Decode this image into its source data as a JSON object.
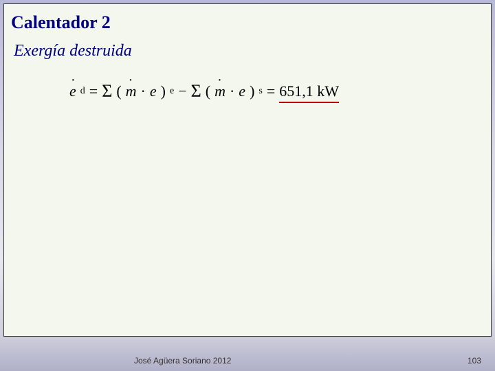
{
  "slide": {
    "title": "Calentador 2",
    "subtitle": "Exergía destruida",
    "equation": {
      "lhs_var": "e",
      "lhs_sub": "d",
      "eq1": "=",
      "sigma1": "Σ",
      "open1": "(",
      "m1": "m",
      "dot1": "·",
      "e1": "e",
      "close1": ")",
      "sub_e": "e",
      "minus": "−",
      "sigma2": "Σ",
      "open2": "(",
      "m2": "m",
      "dot2": "·",
      "e2": "e",
      "close2": ")",
      "sub_s": "s",
      "eq2": "=",
      "result_value": "651,1 kW"
    }
  },
  "footer": {
    "author": "José Agüera Soriano 2012",
    "page": "103"
  },
  "colors": {
    "title_color": "#000080",
    "box_bg": "#f3f7ed",
    "underline": "#c00000"
  }
}
